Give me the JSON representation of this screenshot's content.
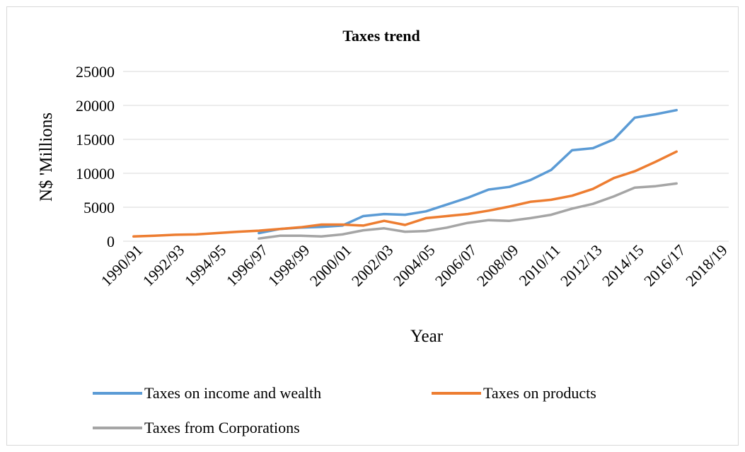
{
  "chart_data": {
    "type": "line",
    "title": "Taxes trend",
    "xlabel": "Year",
    "ylabel": "N$ 'Millions",
    "ylim": [
      0,
      25000
    ],
    "yticks": [
      0,
      5000,
      10000,
      15000,
      20000,
      25000
    ],
    "categories": [
      "1990/91",
      "1991/92",
      "1992/93",
      "1993/94",
      "1994/95",
      "1995/96",
      "1996/97",
      "1997/98",
      "1998/99",
      "1999/00",
      "2000/01",
      "2001/02",
      "2002/03",
      "2003/04",
      "2004/05",
      "2005/06",
      "2006/07",
      "2007/08",
      "2008/09",
      "2009/10",
      "2010/11",
      "2011/12",
      "2012/13",
      "2013/14",
      "2014/15",
      "2015/16",
      "2016/17",
      "2017/18",
      "2018/19"
    ],
    "tick_labels": [
      "1990/91",
      "1992/93",
      "1994/95",
      "1996/97",
      "1998/99",
      "2000/01",
      "2002/03",
      "2004/05",
      "2006/07",
      "2008/09",
      "2010/11",
      "2012/13",
      "2014/15",
      "2016/17",
      "2018/19"
    ],
    "grid": true,
    "legend_position": "bottom",
    "series": [
      {
        "name": "Taxes on income and wealth",
        "color": "#5b9bd5",
        "values": [
          null,
          null,
          null,
          null,
          null,
          null,
          1200,
          1800,
          2000,
          2100,
          2300,
          3700,
          4000,
          3900,
          4400,
          5400,
          6400,
          7600,
          8000,
          9000,
          10500,
          13400,
          13700,
          15000,
          18200,
          18700,
          19300,
          null,
          null
        ]
      },
      {
        "name": "Taxes on products",
        "color": "#ed7d31",
        "values": [
          700,
          800,
          950,
          1000,
          1200,
          1400,
          1550,
          1800,
          2050,
          2450,
          2450,
          2300,
          3000,
          2400,
          3400,
          3700,
          4000,
          4500,
          5100,
          5800,
          6100,
          6700,
          7700,
          9300,
          10300,
          11700,
          13200,
          null,
          null
        ]
      },
      {
        "name": "Taxes from Corporations",
        "color": "#a5a5a5",
        "values": [
          null,
          null,
          null,
          null,
          null,
          null,
          400,
          800,
          800,
          700,
          1000,
          1600,
          1900,
          1400,
          1500,
          2000,
          2700,
          3100,
          3000,
          3400,
          3900,
          4800,
          5500,
          6600,
          7900,
          8100,
          8500,
          null,
          null
        ]
      }
    ]
  }
}
